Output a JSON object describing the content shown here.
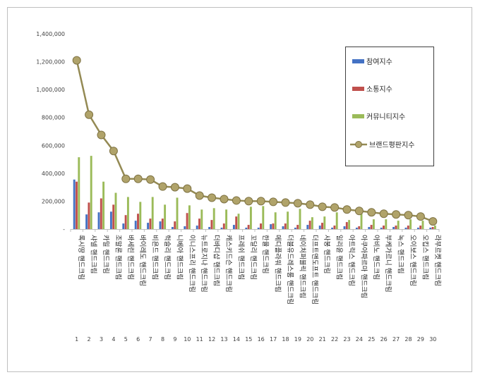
{
  "chart_data": {
    "type": "bar",
    "title": "",
    "xlabel": "",
    "ylabel": "",
    "ylim": [
      0,
      1400000
    ],
    "y_ticks": [
      "-",
      "200,000",
      "400,000",
      "600,000",
      "800,000",
      "1,000,000",
      "1,200,000",
      "1,400,000"
    ],
    "grid": false,
    "legend_position": "top-right",
    "categories": [
      "록시땅 핸드크림",
      "샤넬 핸드크림",
      "카밀 핸드크림",
      "조말론 핸드크림",
      "바세린 핸드크림",
      "바이레도 핸드크림",
      "비욘드 핸드크림",
      "헉슬리 핸드크림",
      "니베아 핸드크림",
      "이니스프리 핸드크림",
      "뉴트로지나 핸드크림",
      "더바디샵 핸드크림",
      "캐스키드슨 핸드크림",
      "프레쉬 핸드크림",
      "꼬달리 핸드크림",
      "한율 핸드크림",
      "메디플라워 핸드크림",
      "더블유드레스룸 핸드크림",
      "네이처퍼블릭 핸드크림",
      "더프트앤도프트 핸드크림",
      "사봉 핸드크림",
      "일리윤 핸드크림",
      "아트릭스 핸드크림",
      "아쿠아파르마 핸드크림",
      "아비노 핸드크림",
      "부케가르니 핸드크림",
      "녹스 핸드크림",
      "오이보스 핸드크림",
      "오킵스 핸드크림",
      "라부르켓 핸드크림"
    ],
    "rank_labels": [
      "1",
      "2",
      "3",
      "4",
      "5",
      "6",
      "7",
      "8",
      "9",
      "10",
      "11",
      "12",
      "13",
      "14",
      "15",
      "16",
      "17",
      "18",
      "19",
      "20",
      "21",
      "22",
      "23",
      "24",
      "25",
      "26",
      "27",
      "28",
      "29",
      "30"
    ],
    "series": [
      {
        "name": "참여지수",
        "kind": "bar",
        "color": "#4472C4",
        "values": [
          355000,
          105000,
          120000,
          125000,
          40000,
          60000,
          45000,
          55000,
          15000,
          20000,
          25000,
          15000,
          10000,
          30000,
          10000,
          10000,
          35000,
          20000,
          10000,
          30000,
          25000,
          10000,
          20000,
          10000,
          15000,
          10000,
          15000,
          10000,
          10000,
          10000
        ]
      },
      {
        "name": "소통지수",
        "kind": "bar",
        "color": "#C0504D",
        "values": [
          340000,
          190000,
          220000,
          175000,
          100000,
          110000,
          75000,
          75000,
          55000,
          115000,
          75000,
          65000,
          40000,
          90000,
          30000,
          40000,
          40000,
          40000,
          30000,
          60000,
          45000,
          25000,
          50000,
          20000,
          30000,
          25000,
          25000,
          25000,
          25000,
          15000
        ]
      },
      {
        "name": "커뮤니티지수",
        "kind": "bar",
        "color": "#9BBB59",
        "values": [
          515000,
          525000,
          340000,
          260000,
          230000,
          195000,
          230000,
          175000,
          225000,
          170000,
          140000,
          150000,
          140000,
          110000,
          160000,
          165000,
          120000,
          125000,
          145000,
          85000,
          90000,
          120000,
          65000,
          110000,
          70000,
          70000,
          60000,
          70000,
          60000,
          25000
        ]
      },
      {
        "name": "브랜드평판지수",
        "kind": "line",
        "color": "#948A54",
        "values": [
          1210000,
          820000,
          675000,
          560000,
          360000,
          360000,
          355000,
          305000,
          300000,
          290000,
          240000,
          225000,
          215000,
          205000,
          200000,
          200000,
          195000,
          190000,
          185000,
          175000,
          160000,
          155000,
          140000,
          130000,
          120000,
          110000,
          105000,
          100000,
          90000,
          55000
        ]
      }
    ]
  }
}
